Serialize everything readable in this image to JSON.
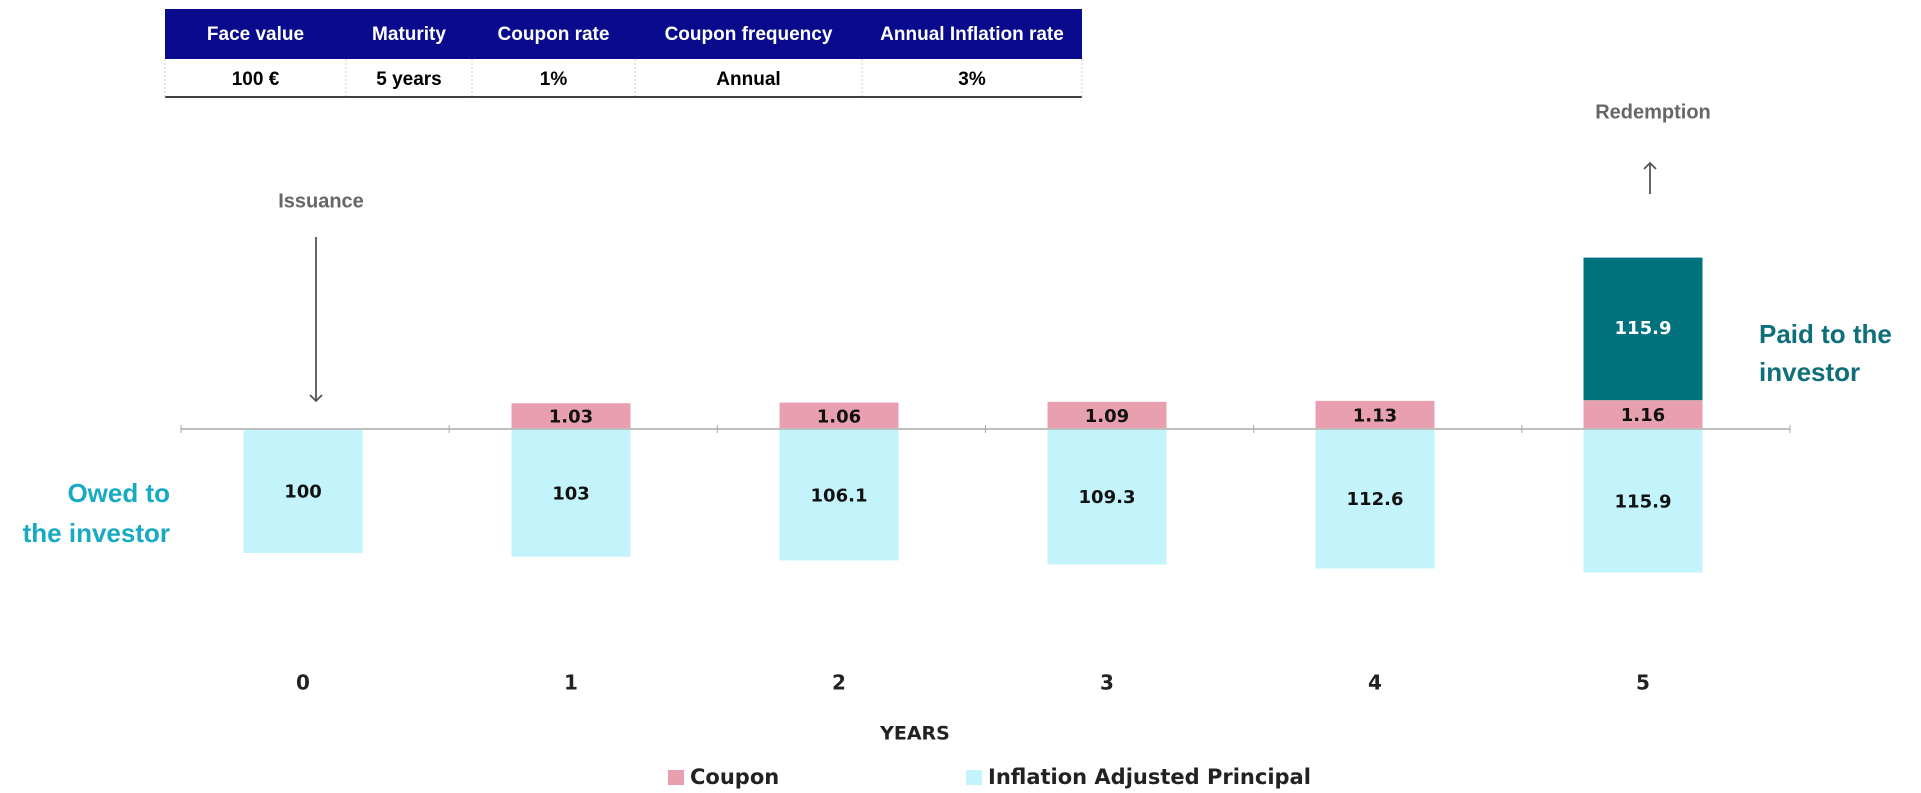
{
  "table": {
    "header": [
      "Face value",
      "Maturity",
      "Coupon rate",
      "Coupon frequency",
      "Annual Inflation rate"
    ],
    "rows": [
      [
        "100 €",
        "5 years",
        "1%",
        "Annual",
        "3%"
      ]
    ]
  },
  "chart_data": {
    "type": "bar",
    "x_label": "YEARS",
    "categories": [
      "0",
      "1",
      "2",
      "3",
      "4",
      "5"
    ],
    "series": [
      {
        "name": "Coupon",
        "color": "#e8a0b1",
        "values": [
          null,
          1.03,
          1.06,
          1.09,
          1.13,
          1.16
        ]
      },
      {
        "name": "Inflation Adjusted Principal",
        "color": "#c4f4fb",
        "values": [
          100,
          103,
          106.1,
          109.3,
          112.6,
          115.9
        ]
      }
    ],
    "redemption": {
      "label": "Redemption",
      "color": "#00727e",
      "values": [
        null,
        null,
        null,
        null,
        null,
        115.9
      ]
    },
    "issuance_label": "Issuance",
    "owed_label": [
      "Owed to",
      "the investor"
    ],
    "paid_label": [
      "Paid to the",
      "investor"
    ]
  }
}
